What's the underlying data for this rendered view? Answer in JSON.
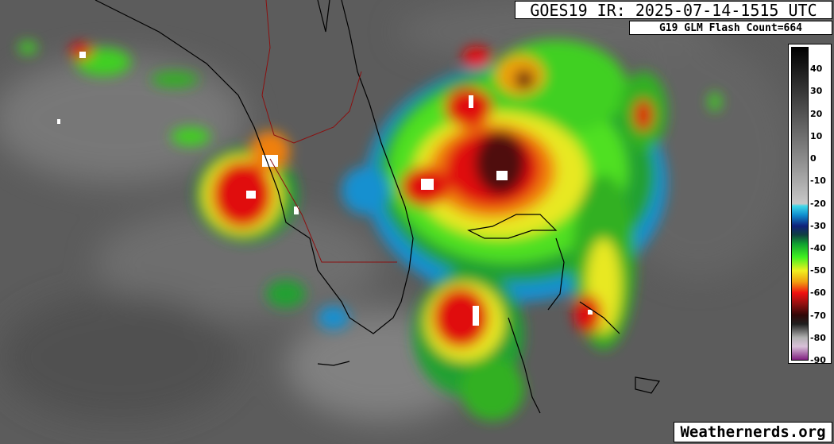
{
  "header": {
    "title": "GOES19 IR: 2025-07-14-1515 UTC",
    "flash_count": "G19 GLM Flash Count=664"
  },
  "colorbar": {
    "ticks": [
      "40",
      "30",
      "20",
      "10",
      "0",
      "-10",
      "-20",
      "-30",
      "-40",
      "-50",
      "-60",
      "-70",
      "-80",
      "-90"
    ],
    "stops": [
      {
        "value": 50,
        "color": "#000000"
      },
      {
        "value": 0,
        "color": "#8c8c8c"
      },
      {
        "value": -20,
        "color": "#c8c8c8"
      },
      {
        "value": -21,
        "color": "#40d8e8"
      },
      {
        "value": -25,
        "color": "#1090d0"
      },
      {
        "value": -30,
        "color": "#10207a"
      },
      {
        "value": -34,
        "color": "#104040"
      },
      {
        "value": -38,
        "color": "#10a030"
      },
      {
        "value": -44,
        "color": "#40f020"
      },
      {
        "value": -50,
        "color": "#f0f020"
      },
      {
        "value": -55,
        "color": "#f0a010"
      },
      {
        "value": -60,
        "color": "#f01010"
      },
      {
        "value": -65,
        "color": "#901010"
      },
      {
        "value": -70,
        "color": "#300808"
      },
      {
        "value": -74,
        "color": "#202020"
      },
      {
        "value": -80,
        "color": "#b0b0b0"
      },
      {
        "value": -84,
        "color": "#d8c0d8"
      },
      {
        "value": -90,
        "color": "#802080"
      }
    ]
  },
  "watermark": "Weathernerds.org"
}
